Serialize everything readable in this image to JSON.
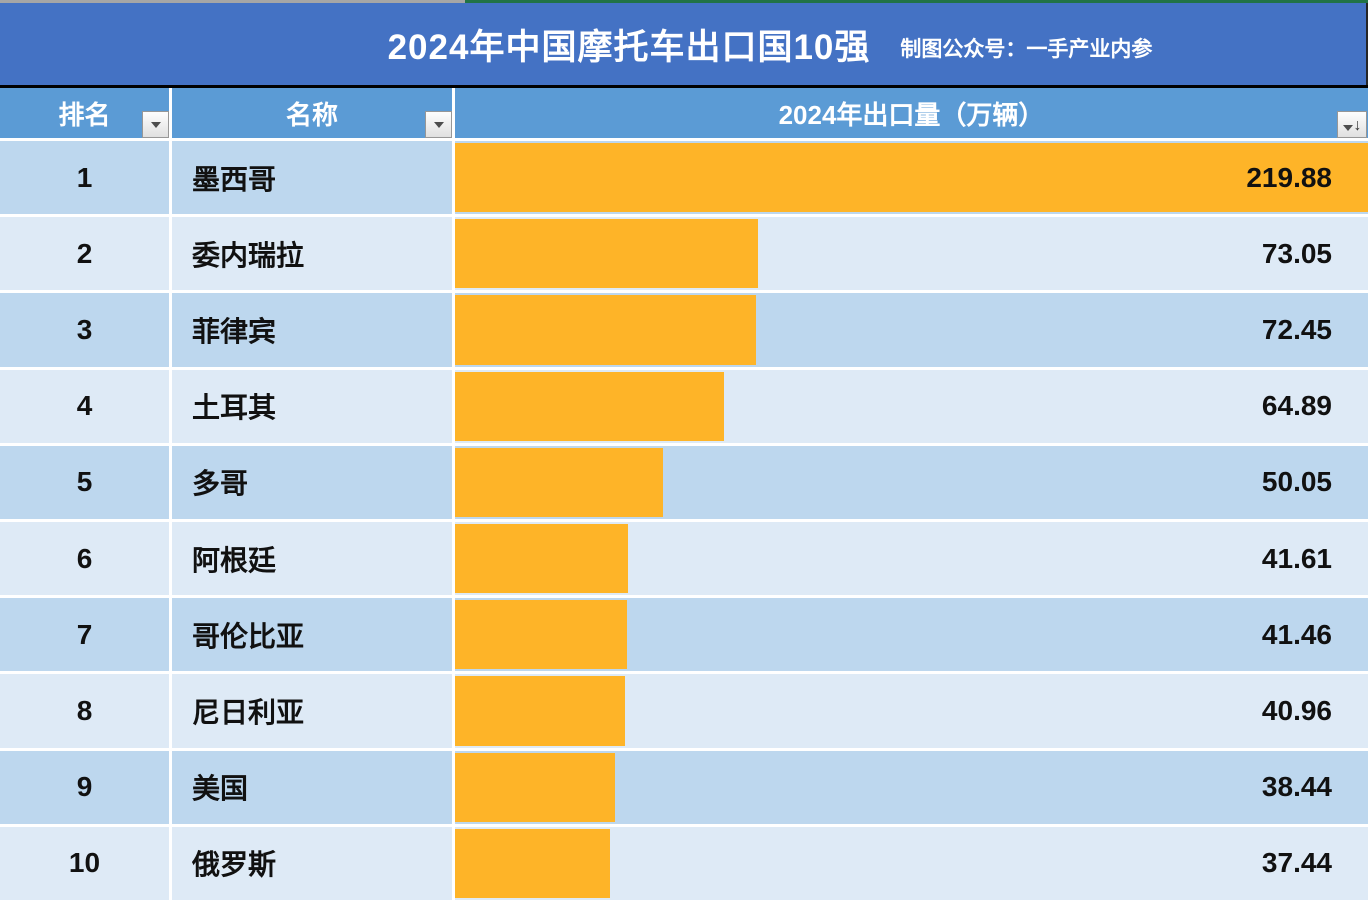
{
  "banner": {
    "title": "2024年中国摩托车出口国10强",
    "subtitle": "制图公众号：一手产业内参",
    "bg_color": "#4472c4"
  },
  "table": {
    "headers": [
      {
        "label": "排名"
      },
      {
        "label": "名称"
      },
      {
        "label": "2024年出口量（万辆）"
      }
    ],
    "rows": [
      {
        "rank": "1",
        "name": "墨西哥",
        "value": "219.88"
      },
      {
        "rank": "2",
        "name": "委内瑞拉",
        "value": "73.05"
      },
      {
        "rank": "3",
        "name": "菲律宾",
        "value": "72.45"
      },
      {
        "rank": "4",
        "name": "土耳其",
        "value": "64.89"
      },
      {
        "rank": "5",
        "name": "多哥",
        "value": "50.05"
      },
      {
        "rank": "6",
        "name": "阿根廷",
        "value": "41.61"
      },
      {
        "rank": "7",
        "name": "哥伦比亚",
        "value": "41.46"
      },
      {
        "rank": "8",
        "name": "尼日利亚",
        "value": "40.96"
      },
      {
        "rank": "9",
        "name": "美国",
        "value": "38.44"
      },
      {
        "rank": "10",
        "name": "俄罗斯",
        "value": "37.44"
      }
    ]
  },
  "icons": {
    "sort_descending_arrow": "↓"
  },
  "colors": {
    "banner_blue": "#4472c4",
    "header_blue": "#5b9bd5",
    "row_odd_blue": "#bdd7ee",
    "row_even_blue": "#deeaf6",
    "bar_orange": "#feb428",
    "strip_gray": "#a6a6a6",
    "strip_green": "#217346"
  },
  "chart_data": {
    "type": "bar",
    "orientation": "horizontal",
    "title": "2024年中国摩托车出口国10强",
    "subtitle": "制图公众号：一手产业内参",
    "xlabel": "2024年出口量（万辆）",
    "ylabel": "排名 / 名称",
    "categories": [
      "墨西哥",
      "委内瑞拉",
      "菲律宾",
      "土耳其",
      "多哥",
      "阿根廷",
      "哥伦比亚",
      "尼日利亚",
      "美国",
      "俄罗斯"
    ],
    "values": [
      219.88,
      73.05,
      72.45,
      64.89,
      50.05,
      41.61,
      41.46,
      40.96,
      38.44,
      37.44
    ],
    "xlim": [
      0,
      219.88
    ],
    "grid": false,
    "legend": false,
    "bar_color": "#feb428"
  }
}
